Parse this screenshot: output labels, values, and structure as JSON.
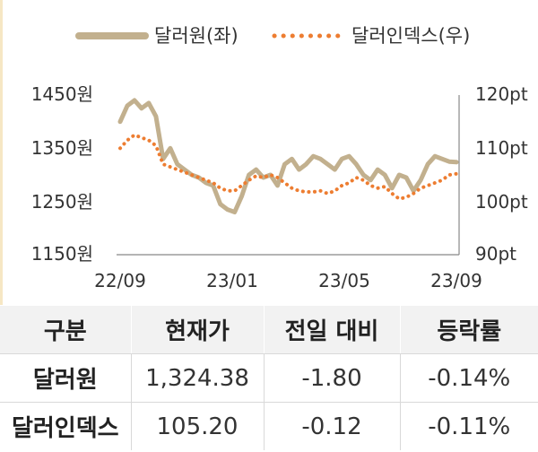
{
  "chart_data": {
    "type": "line",
    "legend": {
      "placement": "top",
      "entries": [
        {
          "label": "달러원(좌)",
          "style": "solid"
        },
        {
          "label": "달러인덱스(우)",
          "style": "dotted"
        }
      ]
    },
    "x_ticks": [
      "22/09",
      "23/01",
      "23/05",
      "23/09"
    ],
    "y_left": {
      "ticks": [
        "1450원",
        "1350원",
        "1250원",
        "1150원"
      ],
      "range": [
        1150,
        1450
      ]
    },
    "y_right": {
      "ticks": [
        "120pt",
        "110pt",
        "100pt",
        "90pt"
      ],
      "range": [
        90,
        120
      ]
    },
    "grid": false,
    "series": [
      {
        "name": "달러원(좌)",
        "axis": "left",
        "color": "#c2b08e",
        "x": [
          "22/09",
          "22/09",
          "22/10",
          "22/10",
          "22/10",
          "22/10",
          "22/11",
          "22/11",
          "22/11",
          "22/11",
          "22/12",
          "22/12",
          "22/12",
          "22/12",
          "23/01",
          "23/01",
          "23/01",
          "23/01",
          "23/02",
          "23/02",
          "23/02",
          "23/02",
          "23/03",
          "23/03",
          "23/03",
          "23/03",
          "23/04",
          "23/04",
          "23/04",
          "23/04",
          "23/05",
          "23/05",
          "23/05",
          "23/05",
          "23/06",
          "23/06",
          "23/06",
          "23/06",
          "23/07",
          "23/07",
          "23/07",
          "23/07",
          "23/08",
          "23/08",
          "23/08",
          "23/08",
          "23/09",
          "23/09"
        ],
        "values": [
          1400,
          1430,
          1440,
          1425,
          1435,
          1410,
          1330,
          1350,
          1320,
          1310,
          1300,
          1295,
          1285,
          1280,
          1245,
          1235,
          1230,
          1260,
          1300,
          1310,
          1295,
          1300,
          1280,
          1320,
          1330,
          1310,
          1320,
          1335,
          1330,
          1320,
          1310,
          1330,
          1335,
          1320,
          1300,
          1290,
          1310,
          1300,
          1275,
          1300,
          1295,
          1270,
          1290,
          1320,
          1335,
          1330,
          1325,
          1324
        ]
      },
      {
        "name": "달러인덱스(우)",
        "axis": "right",
        "color": "#ed7d31",
        "x": [
          "22/09",
          "22/09",
          "22/10",
          "22/10",
          "22/10",
          "22/10",
          "22/11",
          "22/11",
          "22/11",
          "22/11",
          "22/12",
          "22/12",
          "22/12",
          "22/12",
          "23/01",
          "23/01",
          "23/01",
          "23/01",
          "23/02",
          "23/02",
          "23/02",
          "23/02",
          "23/03",
          "23/03",
          "23/03",
          "23/03",
          "23/04",
          "23/04",
          "23/04",
          "23/04",
          "23/05",
          "23/05",
          "23/05",
          "23/05",
          "23/06",
          "23/06",
          "23/06",
          "23/06",
          "23/07",
          "23/07",
          "23/07",
          "23/07",
          "23/08",
          "23/08",
          "23/08",
          "23/08",
          "23/09",
          "23/09"
        ],
        "values": [
          110.0,
          111.5,
          112.5,
          112.0,
          111.5,
          110.5,
          107.0,
          106.5,
          106.0,
          105.5,
          105.0,
          104.5,
          104.0,
          103.5,
          102.5,
          102.0,
          102.0,
          103.0,
          104.0,
          104.8,
          104.5,
          105.0,
          104.5,
          103.5,
          102.5,
          102.0,
          101.8,
          101.8,
          102.0,
          101.5,
          102.0,
          103.0,
          103.5,
          104.5,
          104.0,
          103.0,
          102.5,
          102.8,
          101.5,
          100.5,
          100.8,
          101.5,
          102.5,
          103.0,
          103.5,
          104.0,
          105.0,
          105.2
        ]
      }
    ]
  },
  "table": {
    "headers": [
      "구분",
      "현재가",
      "전일 대비",
      "등락률"
    ],
    "rows": [
      [
        "달러원",
        "1,324.38",
        "-1.80",
        "-0.14%"
      ],
      [
        "달러인덱스",
        "105.20",
        "-0.12",
        "-0.11%"
      ]
    ]
  }
}
